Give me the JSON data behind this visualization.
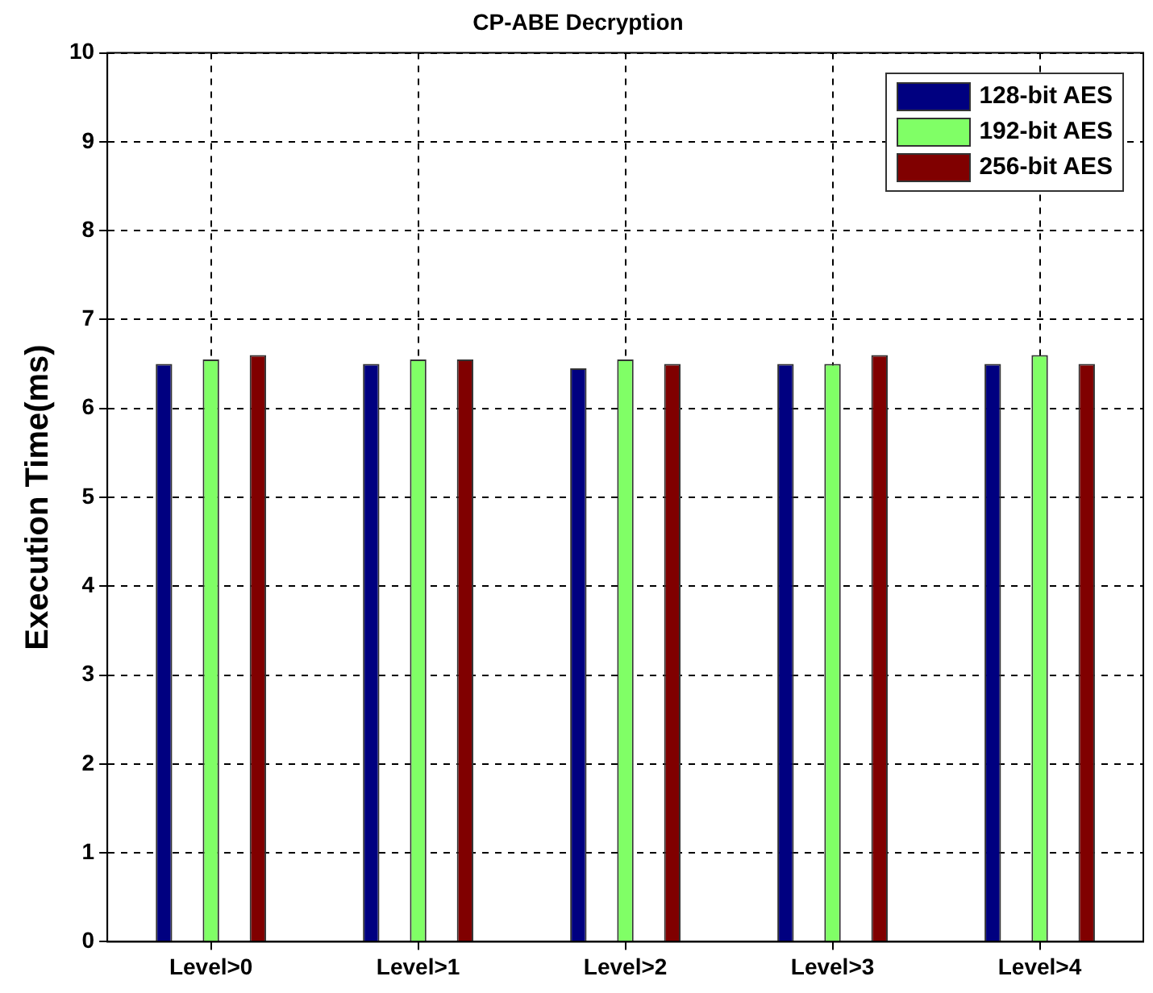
{
  "chart_data": {
    "type": "bar",
    "title": "CP-ABE Decryption",
    "ylabel": "Execution Time(ms)",
    "categories": [
      "Level>0",
      "Level>1",
      "Level>2",
      "Level>3",
      "Level>4"
    ],
    "series": [
      {
        "name": "128-bit AES",
        "color": "#000080",
        "values": [
          6.5,
          6.5,
          6.45,
          6.5,
          6.5
        ]
      },
      {
        "name": "192-bit AES",
        "color": "#80ff66",
        "values": [
          6.55,
          6.55,
          6.55,
          6.5,
          6.6
        ]
      },
      {
        "name": "256-bit AES",
        "color": "#800000",
        "values": [
          6.6,
          6.55,
          6.5,
          6.6,
          6.5
        ]
      }
    ],
    "ylim": [
      0,
      10
    ],
    "yticks": [
      0,
      1,
      2,
      3,
      4,
      5,
      6,
      7,
      8,
      9,
      10
    ],
    "grid": true,
    "legend": "top right"
  }
}
